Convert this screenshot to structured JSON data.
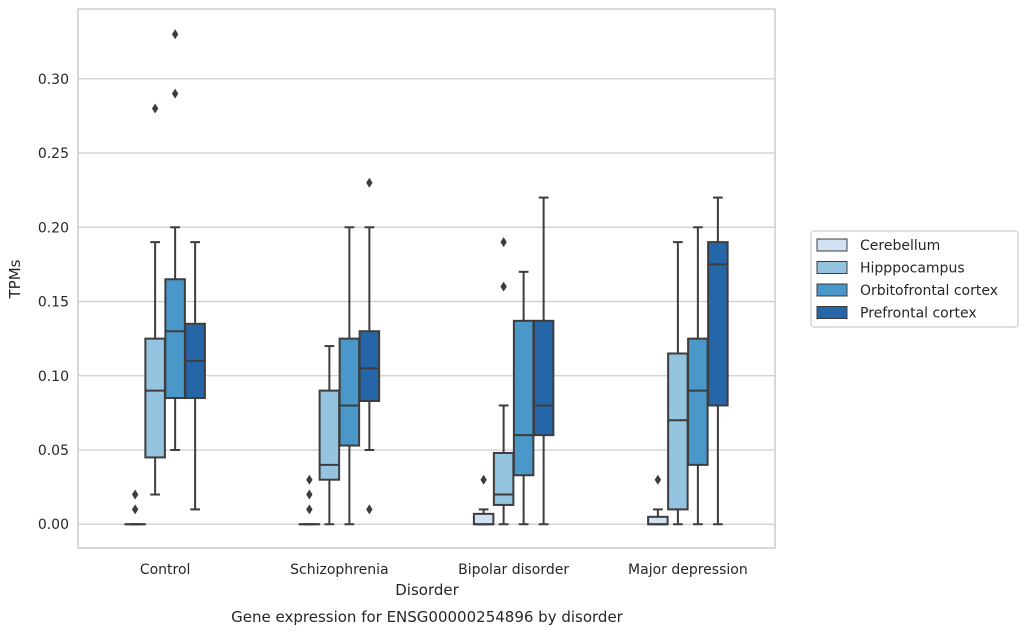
{
  "caption": "Gene expression for ENSG00000254896 by disorder",
  "chart_data": {
    "type": "boxplot",
    "xlabel": "Disorder",
    "ylabel": "TPMs",
    "ylim": [
      -0.016,
      0.347
    ],
    "yticks": [
      0.0,
      0.05,
      0.1,
      0.15,
      0.2,
      0.25,
      0.3
    ],
    "ytick_labels": [
      "0.00",
      "0.05",
      "0.10",
      "0.15",
      "0.20",
      "0.25",
      "0.30"
    ],
    "grid": true,
    "legend_position": "right",
    "categories": [
      "Control",
      "Schizophrenia",
      "Bipolar disorder",
      "Major depression"
    ],
    "series": [
      {
        "name": "Cerebellum",
        "color": "#d0e1f2",
        "boxes": [
          {
            "whislo": 0.0,
            "q1": 0.0,
            "med": 0.0,
            "q3": 0.0,
            "whishi": 0.0,
            "fliers": [
              0.01,
              0.02
            ]
          },
          {
            "whislo": 0.0,
            "q1": 0.0,
            "med": 0.0,
            "q3": 0.0,
            "whishi": 0.0,
            "fliers": [
              0.01,
              0.02,
              0.03
            ]
          },
          {
            "whislo": 0.0,
            "q1": 0.0,
            "med": 0.0,
            "q3": 0.007,
            "whishi": 0.01,
            "fliers": [
              0.03
            ]
          },
          {
            "whislo": 0.0,
            "q1": 0.0,
            "med": 0.0,
            "q3": 0.005,
            "whishi": 0.01,
            "fliers": [
              0.03
            ]
          }
        ]
      },
      {
        "name": "Hipppocampus",
        "color": "#94c4df",
        "boxes": [
          {
            "whislo": 0.02,
            "q1": 0.045,
            "med": 0.09,
            "q3": 0.125,
            "whishi": 0.19,
            "fliers": [
              0.28
            ]
          },
          {
            "whislo": 0.0,
            "q1": 0.03,
            "med": 0.04,
            "q3": 0.09,
            "whishi": 0.12,
            "fliers": []
          },
          {
            "whislo": 0.0,
            "q1": 0.013,
            "med": 0.02,
            "q3": 0.048,
            "whishi": 0.08,
            "fliers": [
              0.16,
              0.19
            ]
          },
          {
            "whislo": 0.0,
            "q1": 0.01,
            "med": 0.07,
            "q3": 0.115,
            "whishi": 0.19,
            "fliers": []
          }
        ]
      },
      {
        "name": "Orbitofrontal cortex",
        "color": "#4a98c9",
        "boxes": [
          {
            "whislo": 0.05,
            "q1": 0.085,
            "med": 0.13,
            "q3": 0.165,
            "whishi": 0.2,
            "fliers": [
              0.29,
              0.33
            ]
          },
          {
            "whislo": 0.0,
            "q1": 0.053,
            "med": 0.08,
            "q3": 0.125,
            "whishi": 0.2,
            "fliers": []
          },
          {
            "whislo": 0.0,
            "q1": 0.033,
            "med": 0.06,
            "q3": 0.137,
            "whishi": 0.17,
            "fliers": []
          },
          {
            "whislo": 0.0,
            "q1": 0.04,
            "med": 0.09,
            "q3": 0.125,
            "whishi": 0.2,
            "fliers": []
          }
        ]
      },
      {
        "name": "Prefrontal cortex",
        "color": "#2566a8",
        "boxes": [
          {
            "whislo": 0.01,
            "q1": 0.085,
            "med": 0.11,
            "q3": 0.135,
            "whishi": 0.19,
            "fliers": []
          },
          {
            "whislo": 0.05,
            "q1": 0.083,
            "med": 0.105,
            "q3": 0.13,
            "whishi": 0.2,
            "fliers": [
              0.01,
              0.23
            ]
          },
          {
            "whislo": 0.0,
            "q1": 0.06,
            "med": 0.08,
            "q3": 0.137,
            "whishi": 0.22,
            "fliers": []
          },
          {
            "whislo": 0.0,
            "q1": 0.08,
            "med": 0.175,
            "q3": 0.19,
            "whishi": 0.22,
            "fliers": []
          }
        ]
      }
    ]
  }
}
